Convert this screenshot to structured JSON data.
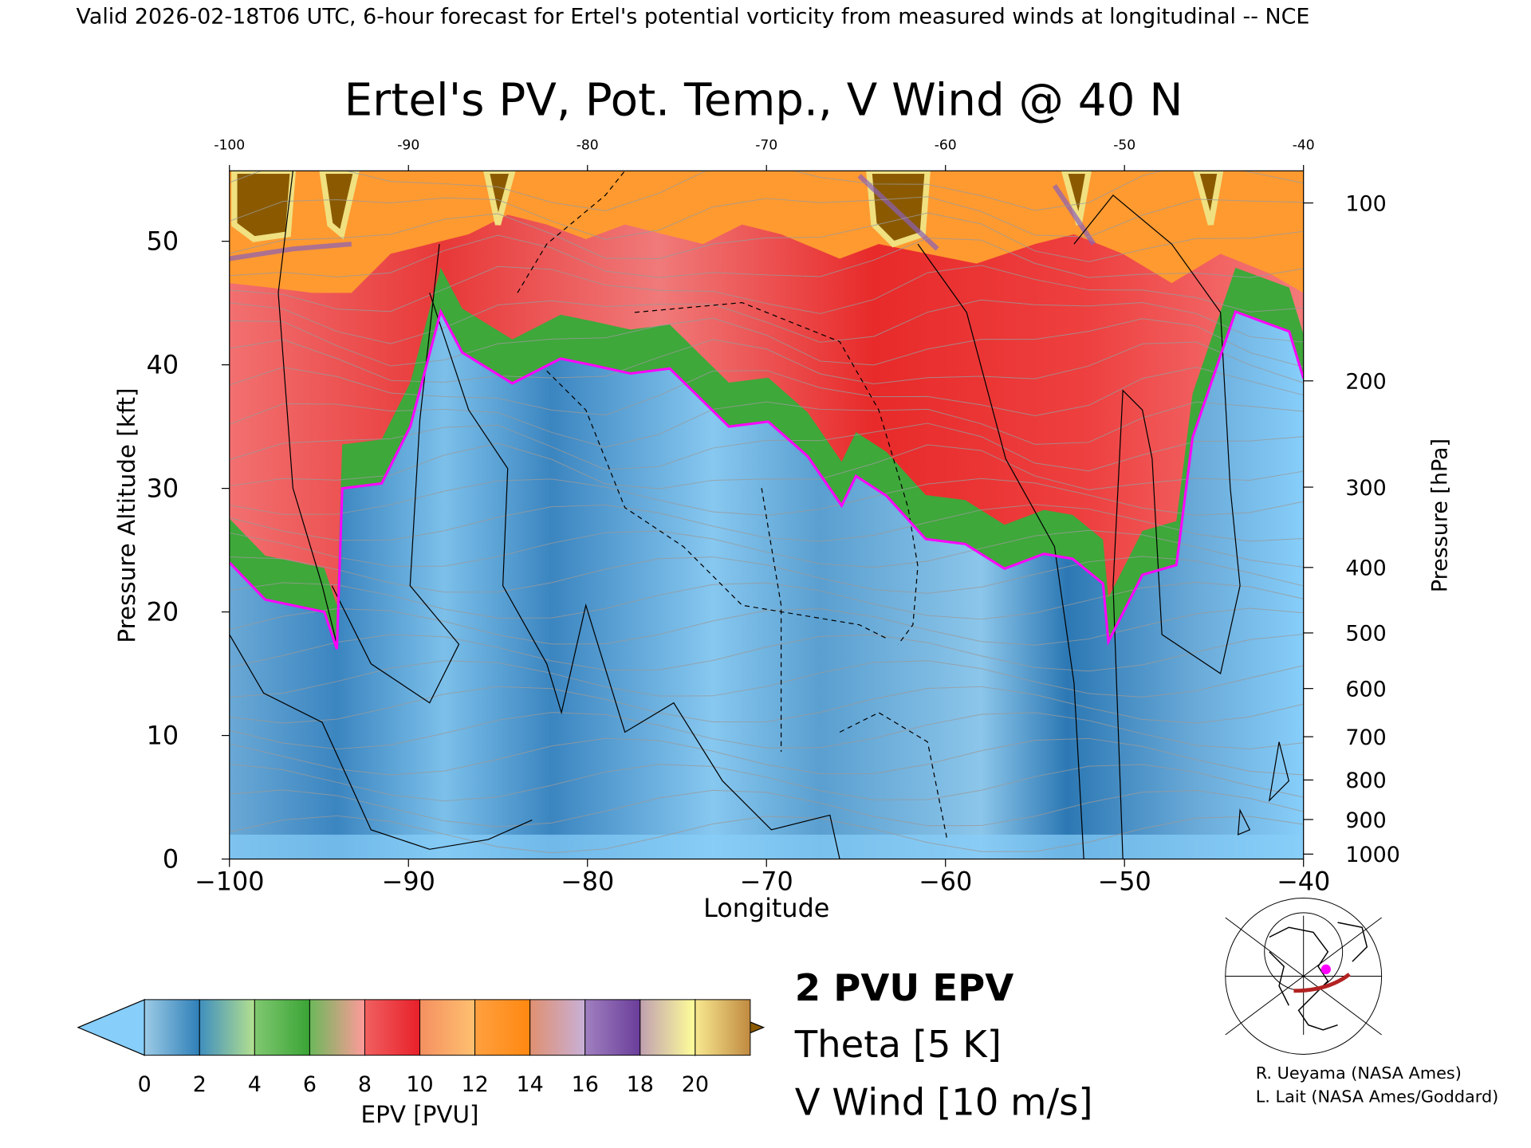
{
  "header": {
    "banner": "Valid 2026-02-18T06 UTC, 6-hour forecast for Ertel's potential vorticity from measured winds at longitudinal -- NCE",
    "title": "Ertel's PV, Pot. Temp., V Wind @ 40 N"
  },
  "legend": {
    "pv_line": "2 PVU EPV",
    "theta": "Theta [5 K]",
    "vwind": "V Wind [10 m/s]",
    "colorbar_label": "EPV [PVU]",
    "colors": {
      "pv_line": "#ff00ff",
      "theta": "#a0a0a0",
      "vwind": "#000000"
    }
  },
  "credits": {
    "line1": "R. Ueyama (NASA Ames)",
    "line2": "L. Lait (NASA Ames/Goddard)"
  },
  "locator_map": {
    "cross_section_lon_range": [
      -100,
      -40
    ],
    "cross_section_lat": 40,
    "arc_color": "#b22222",
    "point_color": "#ff00ff"
  },
  "chart_data": {
    "type": "heatmap",
    "title": "Ertel's PV, Pot. Temp., V Wind @ 40 N",
    "xlabel": "Longitude",
    "ylabel": "Pressure Altitude [kft]",
    "y2label": "Pressure [hPa]",
    "xlim": [
      -100,
      -40
    ],
    "ylim": [
      0,
      55.7
    ],
    "x_ticks": [
      -100,
      -90,
      -80,
      -70,
      -60,
      -50,
      -40
    ],
    "x_tick_labels": [
      "−100",
      "−90",
      "−80",
      "−70",
      "−60",
      "−50",
      "−40"
    ],
    "top_tick_labels": [
      "-100",
      "-90",
      "-80",
      "-70",
      "-60",
      "-50",
      "-40"
    ],
    "y_ticks": [
      0,
      10,
      20,
      30,
      40,
      50
    ],
    "pressure_ticks": [
      {
        "hPa": 100,
        "label": "100",
        "kft": 53.1
      },
      {
        "hPa": 200,
        "label": "200",
        "kft": 38.7
      },
      {
        "hPa": 300,
        "label": "300",
        "kft": 30.1
      },
      {
        "hPa": 400,
        "label": "400",
        "kft": 23.6
      },
      {
        "hPa": 500,
        "label": "500",
        "kft": 18.3
      },
      {
        "hPa": 600,
        "label": "600",
        "kft": 13.8
      },
      {
        "hPa": 700,
        "label": "700",
        "kft": 9.9
      },
      {
        "hPa": 800,
        "label": "800",
        "kft": 6.4
      },
      {
        "hPa": 900,
        "label": "900",
        "kft": 3.2
      },
      {
        "hPa": 1000,
        "label": "1000",
        "kft": 0.4
      }
    ],
    "colorbar": {
      "levels": [
        0,
        2,
        4,
        6,
        8,
        10,
        12,
        14,
        16,
        18,
        20
      ],
      "tick_labels": [
        "0",
        "2",
        "4",
        "6",
        "8",
        "10",
        "12",
        "14",
        "16",
        "18",
        "20"
      ],
      "under_color": "#87cefa",
      "over_color": "#8b5a00",
      "segments": [
        [
          "#9ccbe6",
          "#2e7fb8"
        ],
        [
          "#3f8fbf",
          "#b4e08f"
        ],
        [
          "#80c870",
          "#3aa435"
        ],
        [
          "#6cb85a",
          "#ff9a9a"
        ],
        [
          "#f06060",
          "#e8202a"
        ],
        [
          "#f49060",
          "#ffc070"
        ],
        [
          "#ffa040",
          "#ff8810"
        ],
        [
          "#e09070",
          "#c8b0d8"
        ],
        [
          "#a080c0",
          "#6a3d9a"
        ],
        [
          "#c0a0b0",
          "#ffff99"
        ],
        [
          "#f8e890",
          "#c08a40"
        ]
      ]
    },
    "approx_2pvu_boundary": [
      [
        -100,
        24
      ],
      [
        -98,
        21
      ],
      [
        -94.7,
        20
      ],
      [
        -94,
        17
      ],
      [
        -93.7,
        30
      ],
      [
        -91.5,
        30.4
      ],
      [
        -89.9,
        35
      ],
      [
        -88.2,
        44.3
      ],
      [
        -87,
        41
      ],
      [
        -84.2,
        38.5
      ],
      [
        -81.5,
        40.5
      ],
      [
        -79.8,
        40
      ],
      [
        -77.6,
        39.3
      ],
      [
        -75.4,
        39.7
      ],
      [
        -72.1,
        35
      ],
      [
        -69.9,
        35.4
      ],
      [
        -67.7,
        32.6
      ],
      [
        -65.8,
        28.6
      ],
      [
        -65,
        31
      ],
      [
        -63.3,
        29.4
      ],
      [
        -61.1,
        25.9
      ],
      [
        -58.9,
        25.5
      ],
      [
        -56.7,
        23.5
      ],
      [
        -54.5,
        24.7
      ],
      [
        -52.9,
        24.3
      ],
      [
        -51.2,
        22.3
      ],
      [
        -50.9,
        17.6
      ],
      [
        -49,
        23
      ],
      [
        -47.1,
        23.8
      ],
      [
        -46.2,
        34.1
      ],
      [
        -43.8,
        44.3
      ],
      [
        -40.8,
        42.7
      ],
      [
        -40,
        38.9
      ]
    ]
  }
}
